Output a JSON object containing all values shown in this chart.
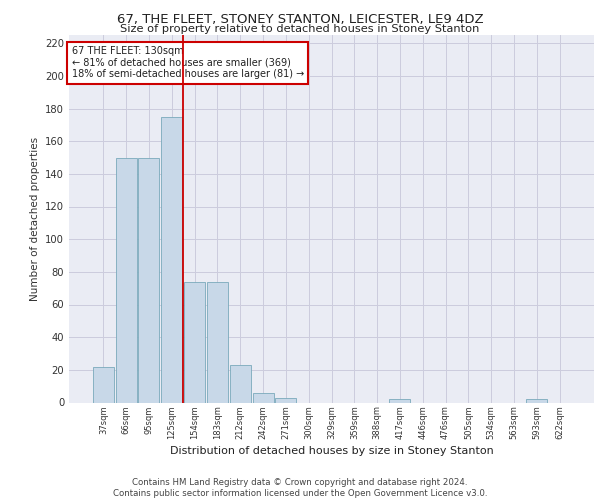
{
  "title1": "67, THE FLEET, STONEY STANTON, LEICESTER, LE9 4DZ",
  "title2": "Size of property relative to detached houses in Stoney Stanton",
  "xlabel": "Distribution of detached houses by size in Stoney Stanton",
  "ylabel": "Number of detached properties",
  "bin_labels": [
    "37sqm",
    "66sqm",
    "95sqm",
    "125sqm",
    "154sqm",
    "183sqm",
    "212sqm",
    "242sqm",
    "271sqm",
    "300sqm",
    "329sqm",
    "359sqm",
    "388sqm",
    "417sqm",
    "446sqm",
    "476sqm",
    "505sqm",
    "534sqm",
    "563sqm",
    "593sqm",
    "622sqm"
  ],
  "bar_heights": [
    22,
    150,
    150,
    175,
    74,
    74,
    23,
    6,
    3,
    0,
    0,
    0,
    0,
    2,
    0,
    0,
    0,
    0,
    0,
    2,
    0
  ],
  "bar_color": "#c8d8e8",
  "bar_edge_color": "#7aaabb",
  "grid_color": "#ccccdd",
  "background_color": "#eaecf4",
  "vline_x_index": 3.5,
  "vline_color": "#cc0000",
  "annotation_text": "67 THE FLEET: 130sqm\n← 81% of detached houses are smaller (369)\n18% of semi-detached houses are larger (81) →",
  "annotation_box_color": "#ffffff",
  "annotation_box_edge": "#cc0000",
  "footnote": "Contains HM Land Registry data © Crown copyright and database right 2024.\nContains public sector information licensed under the Open Government Licence v3.0.",
  "ylim": [
    0,
    225
  ],
  "yticks": [
    0,
    20,
    40,
    60,
    80,
    100,
    120,
    140,
    160,
    180,
    200,
    220
  ]
}
